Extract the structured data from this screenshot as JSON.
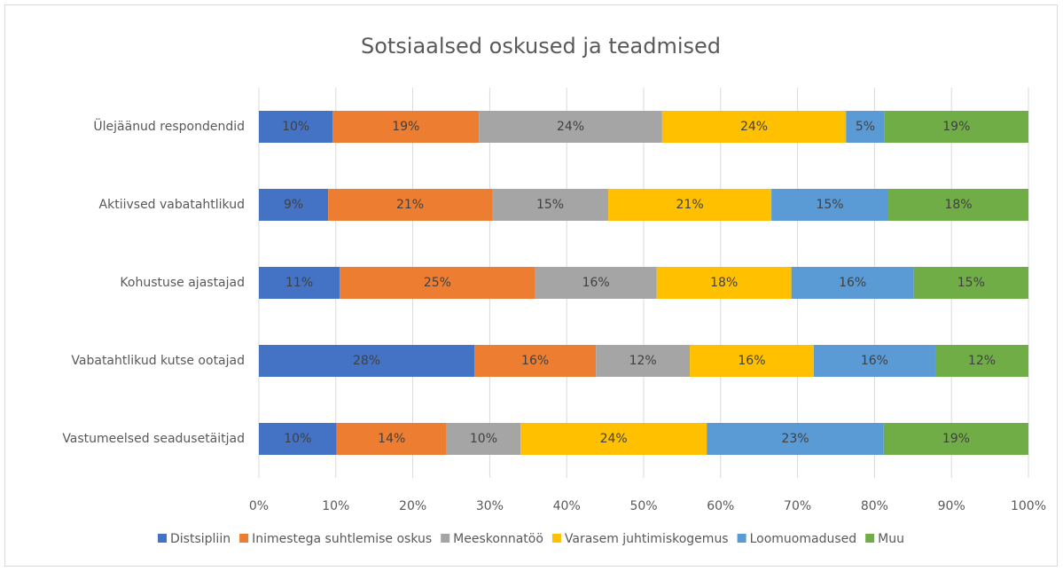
{
  "chart_data": {
    "type": "bar",
    "orientation": "horizontal",
    "stacked": true,
    "title": "Sotsiaalsed oskused ja teadmised",
    "categories": [
      "Ülejäänud respondendid",
      "Aktiivsed vabatahtlikud",
      "Kohustuse ajastajad",
      "Vabatahtlikud kutse ootajad",
      "Vastumeelsed seadusetäitjad"
    ],
    "series": [
      {
        "name": "Distsipliin",
        "color": "#4472c4",
        "values": [
          9.6,
          9.0,
          10.5,
          28.0,
          10.1
        ],
        "value_labels": [
          "10%",
          "9%",
          "11%",
          "28%",
          "10%"
        ]
      },
      {
        "name": "Inimestega suhtlemise oskus",
        "color": "#ed7d31",
        "values": [
          19.0,
          21.3,
          25.4,
          15.8,
          14.3
        ],
        "value_labels": [
          "19%",
          "21%",
          "25%",
          "16%",
          "14%"
        ]
      },
      {
        "name": "Meeskonnatöö",
        "color": "#a5a5a5",
        "values": [
          23.8,
          15.1,
          15.8,
          12.2,
          9.6
        ],
        "value_labels": [
          "24%",
          "15%",
          "16%",
          "12%",
          "10%"
        ]
      },
      {
        "name": "Varasem juhtimiskogemus",
        "color": "#ffc000",
        "values": [
          23.9,
          21.2,
          17.5,
          16.1,
          24.2
        ],
        "value_labels": [
          "24%",
          "21%",
          "18%",
          "16%",
          "24%"
        ]
      },
      {
        "name": "Loomuomadused",
        "color": "#5b9bd5",
        "values": [
          5.0,
          15.2,
          15.9,
          15.8,
          23.0
        ],
        "value_labels": [
          "5%",
          "15%",
          "16%",
          "16%",
          "23%"
        ]
      },
      {
        "name": "Muu",
        "color": "#70ad47",
        "values": [
          18.7,
          18.2,
          14.9,
          12.1,
          18.8
        ],
        "value_labels": [
          "19%",
          "18%",
          "15%",
          "12%",
          "19%"
        ]
      }
    ],
    "xlim": [
      0,
      100
    ],
    "xticks": [
      {
        "value": 0,
        "label": "0%"
      },
      {
        "value": 10,
        "label": "10%"
      },
      {
        "value": 20,
        "label": "20%"
      },
      {
        "value": 30,
        "label": "30%"
      },
      {
        "value": 40,
        "label": "40%"
      },
      {
        "value": 50,
        "label": "50%"
      },
      {
        "value": 60,
        "label": "60%"
      },
      {
        "value": 70,
        "label": "70%"
      },
      {
        "value": 80,
        "label": "80%"
      },
      {
        "value": 90,
        "label": "90%"
      },
      {
        "value": 100,
        "label": "100%"
      }
    ],
    "grid": true,
    "legend": "bottom"
  }
}
